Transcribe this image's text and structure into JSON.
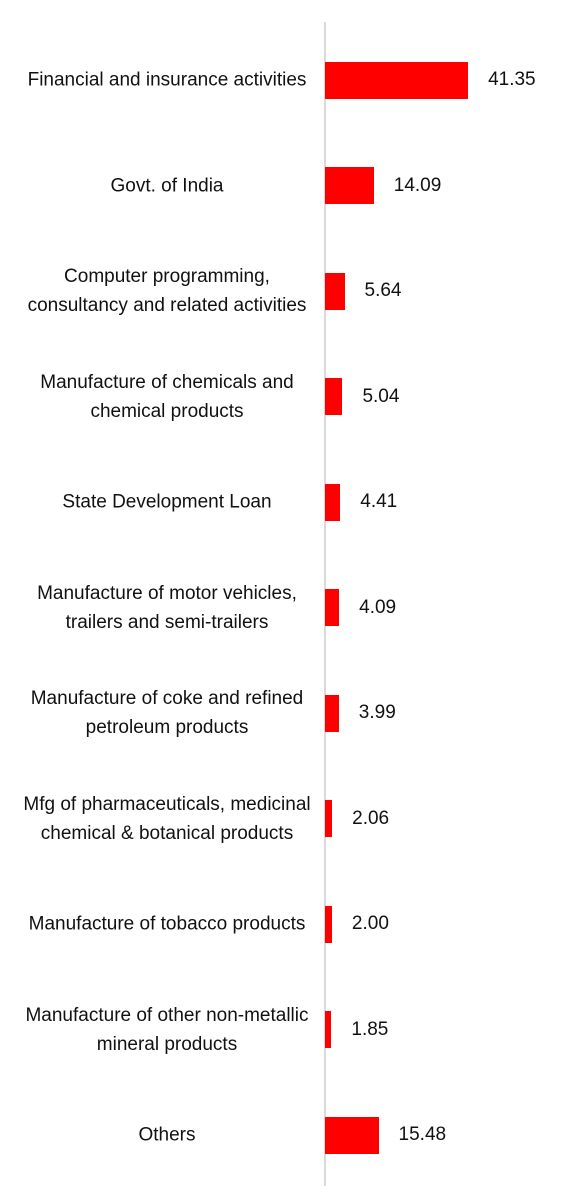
{
  "chart_data": {
    "type": "bar",
    "orientation": "horizontal",
    "color": "#ff0000",
    "categories": [
      "Financial and insurance activities",
      "Govt. of India",
      "Computer programming, consultancy and related activities",
      "Manufacture of chemicals and chemical products",
      "State Development Loan",
      "Manufacture of motor vehicles, trailers and semi-trailers",
      "Manufacture of coke and refined petroleum products",
      "Mfg of pharmaceuticals, medicinal chemical & botanical products",
      "Manufacture of tobacco products",
      "Manufacture of other non-metallic mineral products",
      "Others"
    ],
    "values": [
      41.35,
      14.09,
      5.64,
      5.04,
      4.41,
      4.09,
      3.99,
      2.06,
      2.0,
      1.85,
      15.48
    ],
    "value_labels": [
      "41.35",
      "14.09",
      "5.64",
      "5.04",
      "4.41",
      "4.09",
      "3.99",
      "2.06",
      "2.00",
      "1.85",
      "15.48"
    ]
  }
}
